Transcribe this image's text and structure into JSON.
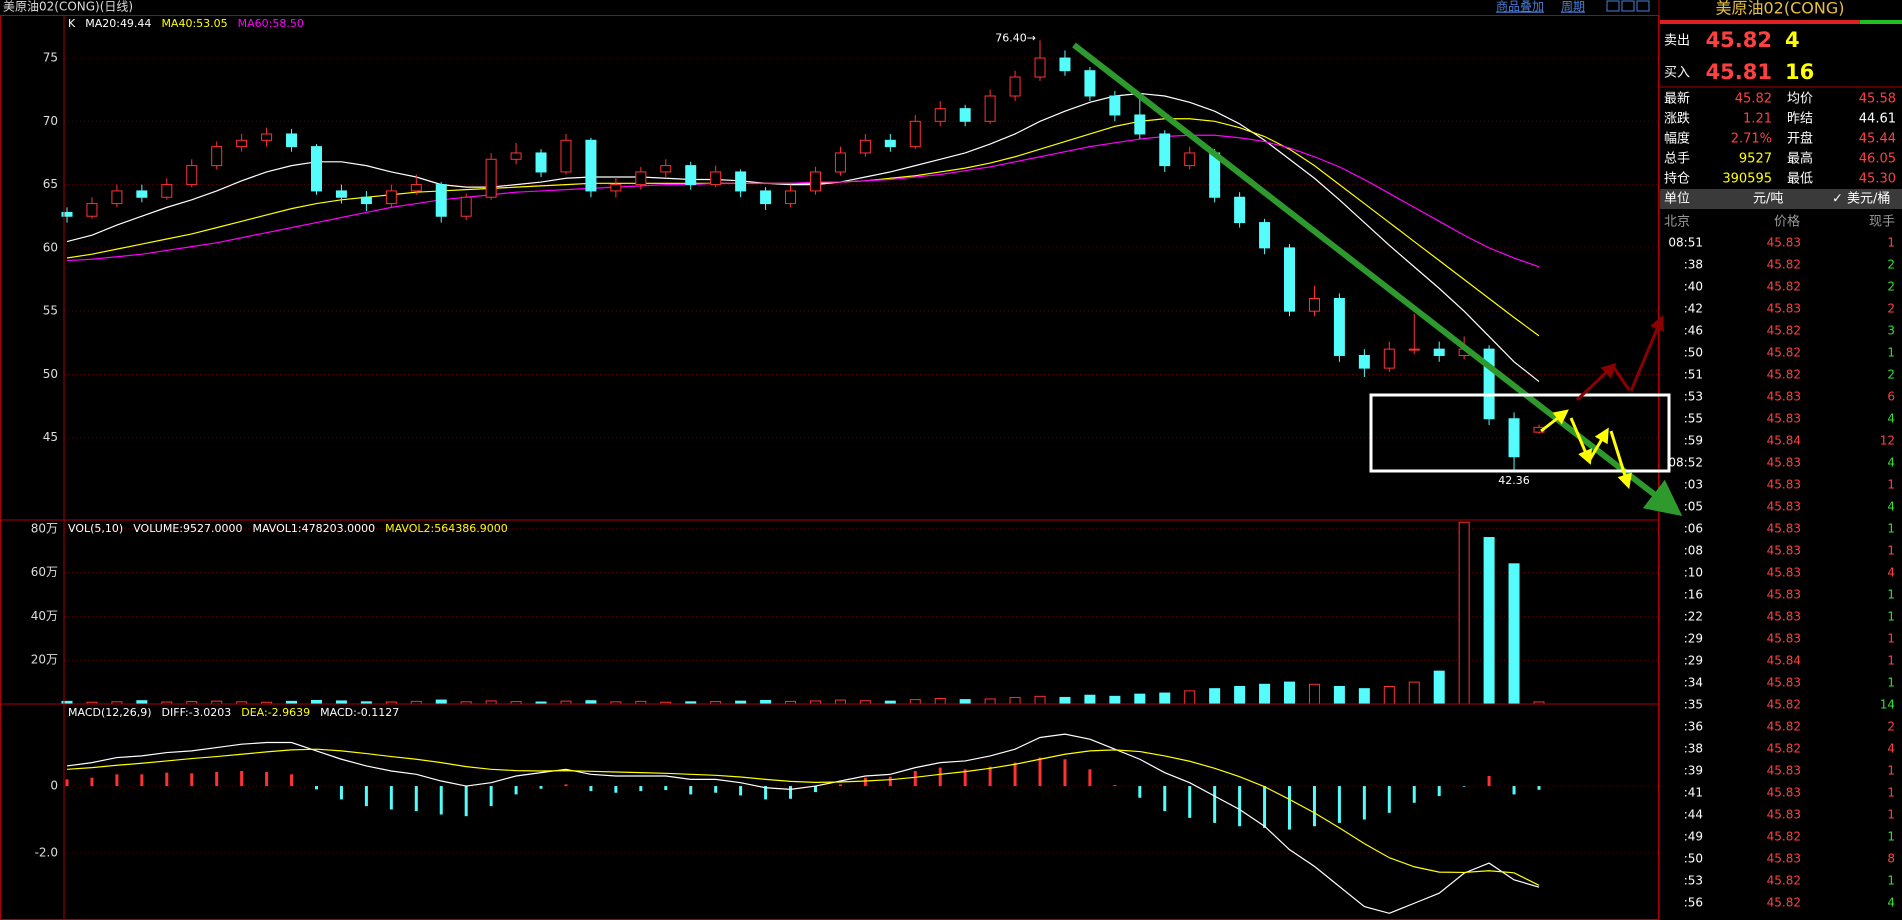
{
  "window": {
    "title": "美原油02(CONG)(日线)",
    "menu": [
      "商品叠加",
      "周期"
    ]
  },
  "chart_data": [
    {
      "type": "candlestick",
      "up_color": "#ff3232",
      "down_color": "#54fcfc",
      "grid": true,
      "legend": [
        {
          "text": "K",
          "color": "#ffffff"
        },
        {
          "text": "MA20:49.44",
          "color": "#ffffff"
        },
        {
          "text": "MA40:53.05",
          "color": "#ffff00"
        },
        {
          "text": "MA60:58.50",
          "color": "#ff00ff"
        }
      ],
      "high_label": "76.40→",
      "low_label": "42.36",
      "ylim": [
        38.5,
        78.4
      ],
      "yticks": [
        45,
        50,
        55,
        60,
        65,
        70,
        75
      ],
      "candles": [
        [
          62.8,
          63.2,
          62,
          62.5
        ],
        [
          62.5,
          64,
          62.3,
          63.5
        ],
        [
          63.5,
          65,
          63.2,
          64.5
        ],
        [
          64.5,
          65,
          63.6,
          64
        ],
        [
          64,
          65.5,
          63.8,
          65
        ],
        [
          65,
          67,
          64.8,
          66.5
        ],
        [
          66.5,
          68.4,
          66.2,
          68
        ],
        [
          68,
          69,
          67.6,
          68.5
        ],
        [
          68.5,
          69.5,
          68,
          69
        ],
        [
          69,
          69.4,
          67.6,
          68
        ],
        [
          68,
          68.2,
          64.2,
          64.5
        ],
        [
          64.5,
          65,
          63.5,
          64
        ],
        [
          64,
          64.5,
          62.9,
          63.5
        ],
        [
          63.5,
          65,
          63.2,
          64.5
        ],
        [
          64.5,
          65.8,
          64.2,
          65
        ],
        [
          65,
          65.2,
          62,
          62.5
        ],
        [
          62.5,
          64.3,
          62.2,
          64
        ],
        [
          64,
          67.5,
          63.8,
          67
        ],
        [
          67,
          68.3,
          66.6,
          67.5
        ],
        [
          67.5,
          67.8,
          65.6,
          66
        ],
        [
          66,
          69,
          65.8,
          68.5
        ],
        [
          68.5,
          68.7,
          64,
          64.5
        ],
        [
          64.5,
          65.6,
          64,
          65
        ],
        [
          65,
          66.4,
          64.6,
          66
        ],
        [
          66,
          67,
          65.6,
          66.5
        ],
        [
          66.5,
          66.8,
          64.6,
          65
        ],
        [
          65,
          66.5,
          64.8,
          66
        ],
        [
          66,
          66.2,
          64,
          64.5
        ],
        [
          64.5,
          64.8,
          63,
          63.5
        ],
        [
          63.5,
          65,
          63.2,
          64.5
        ],
        [
          64.5,
          66.4,
          64.2,
          66
        ],
        [
          66,
          68,
          65.7,
          67.5
        ],
        [
          67.5,
          69,
          67.2,
          68.5
        ],
        [
          68.5,
          69,
          67.6,
          68
        ],
        [
          68,
          70.5,
          67.8,
          70
        ],
        [
          70,
          71.6,
          69.6,
          71
        ],
        [
          71,
          71.3,
          69.6,
          70
        ],
        [
          70,
          72.5,
          69.8,
          72
        ],
        [
          72,
          74,
          71.6,
          73.5
        ],
        [
          73.5,
          76.4,
          73.2,
          75
        ],
        [
          75,
          75.6,
          73.6,
          74
        ],
        [
          74,
          74.3,
          71.6,
          72
        ],
        [
          72,
          72.4,
          70,
          70.5
        ],
        [
          70.5,
          72,
          68.6,
          69
        ],
        [
          69,
          69.3,
          66,
          66.5
        ],
        [
          66.5,
          68,
          66.2,
          67.5
        ],
        [
          67.5,
          67.8,
          63.6,
          64
        ],
        [
          64,
          64.4,
          61.6,
          62
        ],
        [
          62,
          62.3,
          59.5,
          60
        ],
        [
          60,
          60.3,
          54.6,
          55
        ],
        [
          55,
          57,
          54.6,
          56
        ],
        [
          56,
          56.4,
          51,
          51.5
        ],
        [
          51.5,
          52,
          49.8,
          50.5
        ],
        [
          50.5,
          52.6,
          50.2,
          52
        ],
        [
          52,
          54.8,
          51.6,
          52
        ],
        [
          52,
          52.6,
          51,
          51.5
        ],
        [
          51.5,
          53,
          51.2,
          52
        ],
        [
          52,
          52.3,
          46,
          46.5
        ],
        [
          46.5,
          47,
          42.36,
          43.5
        ],
        [
          45.44,
          46.05,
          45.3,
          45.82
        ]
      ],
      "lines": [
        {
          "color": "#ffffff",
          "values": [
            60.5,
            61,
            61.8,
            62.5,
            63.2,
            63.8,
            64.5,
            65.3,
            66,
            66.5,
            66.8,
            66.8,
            66.5,
            66,
            65.6,
            65,
            64.8,
            64.8,
            65,
            65.2,
            65.5,
            65.6,
            65.6,
            65.6,
            65.5,
            65.4,
            65.4,
            65.3,
            65.1,
            65,
            65,
            65.2,
            65.6,
            66,
            66.5,
            67,
            67.5,
            68.2,
            69,
            70,
            70.8,
            71.5,
            72,
            72.2,
            72,
            71.5,
            70.8,
            69.8,
            68.5,
            67,
            65.5,
            63.8,
            62,
            60.2,
            58.5,
            56.8,
            55,
            53,
            51,
            49.44
          ]
        },
        {
          "color": "#ffff00",
          "values": [
            59.2,
            59.5,
            59.9,
            60.3,
            60.7,
            61.1,
            61.6,
            62.1,
            62.6,
            63.1,
            63.5,
            63.8,
            64,
            64.2,
            64.4,
            64.5,
            64.6,
            64.7,
            64.8,
            64.9,
            65,
            65.1,
            65.1,
            65.1,
            65.1,
            65.1,
            65.1,
            65.1,
            65.1,
            65.1,
            65.1,
            65.2,
            65.3,
            65.5,
            65.7,
            66,
            66.3,
            66.7,
            67.2,
            67.8,
            68.4,
            69,
            69.6,
            70,
            70.2,
            70.2,
            70,
            69.5,
            68.8,
            67.8,
            66.5,
            65,
            63.5,
            62,
            60.5,
            59,
            57.5,
            56,
            54.5,
            53.05
          ]
        },
        {
          "color": "#ff00ff",
          "values": [
            59,
            59.1,
            59.3,
            59.5,
            59.8,
            60.1,
            60.4,
            60.8,
            61.2,
            61.6,
            62,
            62.4,
            62.8,
            63.2,
            63.5,
            63.8,
            64,
            64.2,
            64.4,
            64.5,
            64.6,
            64.7,
            64.8,
            64.9,
            65,
            65,
            65.1,
            65.1,
            65.1,
            65.1,
            65.2,
            65.2,
            65.3,
            65.4,
            65.6,
            65.8,
            66.1,
            66.4,
            66.8,
            67.2,
            67.6,
            68,
            68.3,
            68.6,
            68.8,
            68.9,
            68.9,
            68.7,
            68.4,
            67.9,
            67.2,
            66.4,
            65.4,
            64.3,
            63.2,
            62.1,
            61,
            60,
            59.2,
            58.5
          ]
        }
      ]
    },
    {
      "type": "bar",
      "grid": true,
      "legend": [
        {
          "text": "VOL(5,10)",
          "color": "#ffffff"
        },
        {
          "text": "VOLUME:9527.0000",
          "color": "#ffffff"
        },
        {
          "text": "MAVOL1:478203.0000",
          "color": "#ffffff"
        },
        {
          "text": "MAVOL2:564386.9000",
          "color": "#ffff00"
        }
      ],
      "ylim": [
        0,
        84
      ],
      "yticks": [
        {
          "value": 20,
          "label": "20万"
        },
        {
          "value": 40,
          "label": "40万"
        },
        {
          "value": 60,
          "label": "60万"
        },
        {
          "value": 80,
          "label": "80万"
        }
      ],
      "values": [
        1.2,
        0.8,
        1,
        1.5,
        0.9,
        1.1,
        1.3,
        1,
        0.8,
        1.2,
        1.6,
        1.4,
        1,
        0.9,
        1.2,
        1.8,
        1,
        1.4,
        1.1,
        0.9,
        1.3,
        1.5,
        1,
        1.2,
        0.8,
        1,
        1.1,
        1.3,
        1.6,
        1.2,
        1.4,
        1.8,
        1.5,
        1.3,
        2,
        2.5,
        2,
        2.3,
        3,
        3.5,
        3,
        4,
        3.5,
        4.5,
        5,
        6,
        7,
        8,
        9,
        10,
        9,
        8,
        7,
        8,
        10,
        15,
        83,
        76,
        64,
        0.95
      ]
    },
    {
      "type": "macd",
      "grid": true,
      "legend": [
        {
          "text": "MACD(12,26,9)",
          "color": "#ffffff"
        },
        {
          "text": "DIFF:-3.0203",
          "color": "#ffffff"
        },
        {
          "text": "DEA:-2.9639",
          "color": "#ffff00"
        },
        {
          "text": "MACD:-0.1127",
          "color": "#ffffff"
        }
      ],
      "ylim": [
        -4.0,
        2.45
      ],
      "yticks": [
        {
          "value": -2,
          "label": "-2.0"
        },
        0
      ],
      "up_color": "#ff3232",
      "down_color": "#54fcfc",
      "histogram": [
        0.2,
        0.25,
        0.35,
        0.35,
        0.4,
        0.38,
        0.42,
        0.45,
        0.42,
        0.35,
        -0.1,
        -0.4,
        -0.6,
        -0.7,
        -0.75,
        -0.85,
        -0.9,
        -0.6,
        -0.25,
        -0.08,
        0.05,
        -0.15,
        -0.2,
        -0.15,
        -0.12,
        -0.25,
        -0.2,
        -0.28,
        -0.4,
        -0.38,
        -0.18,
        0.05,
        0.25,
        0.28,
        0.45,
        0.55,
        0.5,
        0.58,
        0.7,
        0.85,
        0.8,
        0.5,
        0.03,
        -0.35,
        -0.75,
        -0.95,
        -1.1,
        -1.2,
        -1.25,
        -1.3,
        -1.2,
        -1.1,
        -1,
        -0.8,
        -0.5,
        -0.3,
        -0.02,
        0.3,
        -0.25,
        -0.1127
      ],
      "series": [
        {
          "color": "#ffffff",
          "values": [
            0.6,
            0.7,
            0.85,
            0.9,
            1,
            1.05,
            1.15,
            1.25,
            1.3,
            1.3,
            1.05,
            0.8,
            0.6,
            0.45,
            0.35,
            0.15,
            0,
            0.1,
            0.3,
            0.4,
            0.5,
            0.35,
            0.3,
            0.3,
            0.3,
            0.2,
            0.2,
            0.1,
            -0.05,
            -0.1,
            0,
            0.15,
            0.3,
            0.35,
            0.55,
            0.7,
            0.75,
            0.9,
            1.1,
            1.45,
            1.55,
            1.4,
            1.1,
            0.8,
            0.4,
            0.1,
            -0.3,
            -0.7,
            -1.2,
            -1.9,
            -2.4,
            -3,
            -3.6,
            -3.8,
            -3.5,
            -3.2,
            -2.6,
            -2.3,
            -2.8,
            -3.0203
          ]
        },
        {
          "color": "#ffff00",
          "values": [
            0.5,
            0.55,
            0.62,
            0.68,
            0.75,
            0.82,
            0.88,
            0.95,
            1.02,
            1.08,
            1.1,
            1.05,
            0.97,
            0.88,
            0.8,
            0.7,
            0.58,
            0.5,
            0.46,
            0.45,
            0.46,
            0.44,
            0.42,
            0.4,
            0.38,
            0.35,
            0.32,
            0.27,
            0.2,
            0.14,
            0.11,
            0.12,
            0.15,
            0.19,
            0.26,
            0.35,
            0.43,
            0.53,
            0.65,
            0.8,
            0.95,
            1.05,
            1.08,
            1.03,
            0.9,
            0.74,
            0.53,
            0.28,
            -0.02,
            -0.4,
            -0.8,
            -1.25,
            -1.72,
            -2.14,
            -2.41,
            -2.57,
            -2.58,
            -2.53,
            -2.59,
            -2.9639
          ]
        }
      ]
    }
  ],
  "quote": {
    "title": "美原油02(CONG)",
    "ask": [
      "卖出",
      "45.82",
      "4"
    ],
    "bid": [
      "买入",
      "45.81",
      "16"
    ],
    "stats": [
      {
        "label": "最新",
        "value": "45.82",
        "color": "#ff4040"
      },
      {
        "label": "均价",
        "value": "45.58",
        "color": "#ff4040"
      },
      {
        "label": "涨跌",
        "value": "1.21",
        "color": "#ff4040"
      },
      {
        "label": "昨结",
        "value": "44.61",
        "color": "#ffffff"
      },
      {
        "label": "幅度",
        "value": "2.71%",
        "color": "#ff4040"
      },
      {
        "label": "开盘",
        "value": "45.44",
        "color": "#ff4040"
      },
      {
        "label": "总手",
        "value": "9527",
        "color": "#ffff00"
      },
      {
        "label": "最高",
        "value": "46.05",
        "color": "#ff4040"
      },
      {
        "label": "持仓",
        "value": "390595",
        "color": "#ffff00"
      },
      {
        "label": "最低",
        "value": "45.30",
        "color": "#ff4040"
      }
    ],
    "unit": [
      "单位",
      "元/吨",
      "✓ 美元/桶"
    ],
    "trade_header": [
      "北京",
      "价格",
      "现手"
    ],
    "trades": [
      [
        "08:51",
        "45.83",
        "1",
        "#ff4040"
      ],
      [
        ":38",
        "45.82",
        "2",
        "#30e030"
      ],
      [
        ":40",
        "45.82",
        "2",
        "#30e030"
      ],
      [
        ":42",
        "45.83",
        "2",
        "#ff4040"
      ],
      [
        ":46",
        "45.82",
        "3",
        "#30e030"
      ],
      [
        ":50",
        "45.82",
        "1",
        "#30e030"
      ],
      [
        ":51",
        "45.82",
        "2",
        "#30e030"
      ],
      [
        ":53",
        "45.83",
        "6",
        "#ff4040"
      ],
      [
        ":55",
        "45.83",
        "4",
        "#30e030"
      ],
      [
        ":59",
        "45.84",
        "12",
        "#ff4040"
      ],
      [
        "08:52",
        "45.83",
        "4",
        "#30e030"
      ],
      [
        ":03",
        "45.83",
        "1",
        "#ff4040"
      ],
      [
        ":05",
        "45.83",
        "4",
        "#30e030"
      ],
      [
        ":06",
        "45.83",
        "1",
        "#30e030"
      ],
      [
        ":08",
        "45.83",
        "1",
        "#ff4040"
      ],
      [
        ":10",
        "45.83",
        "4",
        "#ff4040"
      ],
      [
        ":16",
        "45.83",
        "1",
        "#30e030"
      ],
      [
        ":22",
        "45.83",
        "1",
        "#30e030"
      ],
      [
        ":29",
        "45.83",
        "1",
        "#ff4040"
      ],
      [
        ":29",
        "45.84",
        "1",
        "#ff4040"
      ],
      [
        ":34",
        "45.83",
        "1",
        "#30e030"
      ],
      [
        ":35",
        "45.82",
        "14",
        "#30e030"
      ],
      [
        ":36",
        "45.82",
        "2",
        "#ff4040"
      ],
      [
        ":38",
        "45.82",
        "4",
        "#ff4040"
      ],
      [
        ":39",
        "45.83",
        "1",
        "#ff4040"
      ],
      [
        ":41",
        "45.83",
        "1",
        "#ff4040"
      ],
      [
        ":44",
        "45.83",
        "1",
        "#ff4040"
      ],
      [
        ":49",
        "45.82",
        "1",
        "#30e030"
      ],
      [
        ":50",
        "45.83",
        "8",
        "#ff4040"
      ],
      [
        ":53",
        "45.82",
        "1",
        "#30e030"
      ],
      [
        ":56",
        "45.82",
        "4",
        "#30e030"
      ]
    ]
  }
}
